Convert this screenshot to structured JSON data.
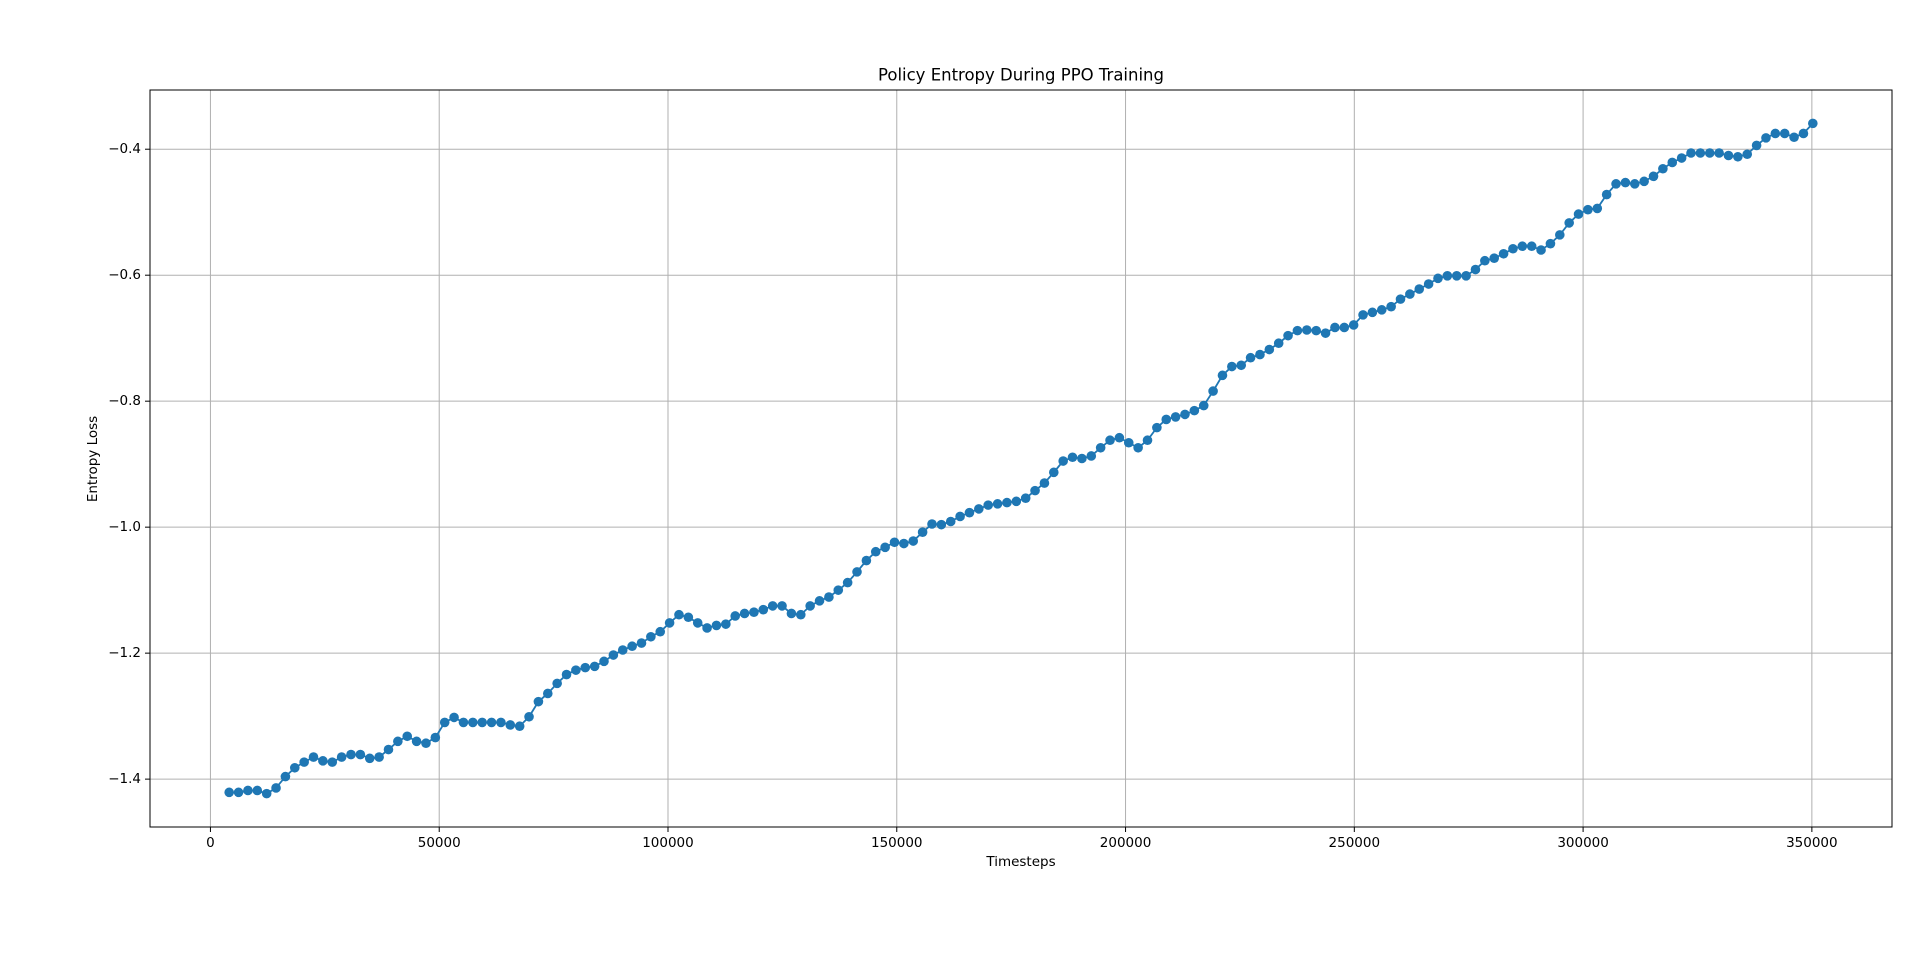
{
  "chart_data": {
    "type": "line",
    "title": "Policy Entropy During PPO Training",
    "xlabel": "Timesteps",
    "ylabel": "Entropy Loss",
    "x": [
      4096,
      6144,
      8192,
      10240,
      12288,
      14336,
      16384,
      18432,
      20480,
      22528,
      24576,
      26624,
      28672,
      30720,
      32768,
      34816,
      36864,
      38912,
      40960,
      43008,
      45056,
      47104,
      49152,
      51200,
      53248,
      55296,
      57344,
      59392,
      61440,
      63488,
      65536,
      67584,
      69632,
      71680,
      73728,
      75776,
      77824,
      79872,
      81920,
      83968,
      86016,
      88064,
      90112,
      92160,
      94208,
      96256,
      98304,
      100352,
      102400,
      104448,
      106496,
      108544,
      110592,
      112640,
      114688,
      116736,
      118784,
      120832,
      122880,
      124928,
      126976,
      129024,
      131072,
      133120,
      135168,
      137216,
      139264,
      141312,
      143360,
      145408,
      147456,
      149504,
      151552,
      153600,
      155648,
      157696,
      159744,
      161792,
      163840,
      165888,
      167936,
      169984,
      172032,
      174080,
      176128,
      178176,
      180224,
      182272,
      184320,
      186368,
      188416,
      190464,
      192512,
      194560,
      196608,
      198656,
      200704,
      202752,
      204800,
      206848,
      208896,
      210944,
      212992,
      215040,
      217088,
      219136,
      221184,
      223232,
      225280,
      227328,
      229376,
      231424,
      233472,
      235520,
      237568,
      239616,
      241664,
      243712,
      245760,
      247808,
      249856,
      251904,
      253952,
      256000,
      258048,
      260096,
      262144,
      264192,
      266240,
      268288,
      270336,
      272384,
      274432,
      276480,
      278528,
      280576,
      282624,
      284672,
      286720,
      288768,
      290816,
      292864,
      294912,
      296960,
      299008,
      301056,
      303104,
      305152,
      307200,
      309248,
      311296,
      313344,
      315392,
      317440,
      319488,
      321536,
      323584,
      325632,
      327680,
      329728,
      331776,
      333824,
      335872,
      337920,
      339968,
      342016,
      344064,
      346112,
      348160,
      350208
    ],
    "series": [
      {
        "color": "#1f77b4",
        "values": [
          -1.421,
          -1.421,
          -1.418,
          -1.418,
          -1.423,
          -1.414,
          -1.396,
          -1.382,
          -1.373,
          -1.365,
          -1.371,
          -1.373,
          -1.365,
          -1.361,
          -1.361,
          -1.367,
          -1.365,
          -1.353,
          -1.34,
          -1.332,
          -1.34,
          -1.343,
          -1.334,
          -1.31,
          -1.302,
          -1.31,
          -1.31,
          -1.31,
          -1.31,
          -1.31,
          -1.314,
          -1.316,
          -1.301,
          -1.277,
          -1.264,
          -1.248,
          -1.234,
          -1.227,
          -1.223,
          -1.221,
          -1.213,
          -1.203,
          -1.195,
          -1.189,
          -1.184,
          -1.174,
          -1.166,
          -1.152,
          -1.139,
          -1.143,
          -1.152,
          -1.16,
          -1.156,
          -1.154,
          -1.141,
          -1.137,
          -1.135,
          -1.131,
          -1.125,
          -1.125,
          -1.137,
          -1.139,
          -1.125,
          -1.117,
          -1.111,
          -1.1,
          -1.088,
          -1.071,
          -1.053,
          -1.039,
          -1.032,
          -1.024,
          -1.026,
          -1.022,
          -1.008,
          -0.995,
          -0.996,
          -0.991,
          -0.983,
          -0.977,
          -0.971,
          -0.965,
          -0.963,
          -0.961,
          -0.959,
          -0.954,
          -0.942,
          -0.93,
          -0.913,
          -0.895,
          -0.889,
          -0.891,
          -0.887,
          -0.874,
          -0.862,
          -0.858,
          -0.866,
          -0.874,
          -0.862,
          -0.842,
          -0.829,
          -0.825,
          -0.821,
          -0.815,
          -0.807,
          -0.784,
          -0.759,
          -0.745,
          -0.743,
          -0.731,
          -0.726,
          -0.718,
          -0.708,
          -0.696,
          -0.688,
          -0.687,
          -0.688,
          -0.692,
          -0.683,
          -0.683,
          -0.679,
          -0.663,
          -0.659,
          -0.655,
          -0.65,
          -0.638,
          -0.63,
          -0.622,
          -0.614,
          -0.605,
          -0.601,
          -0.601,
          -0.601,
          -0.591,
          -0.577,
          -0.573,
          -0.566,
          -0.558,
          -0.554,
          -0.554,
          -0.56,
          -0.55,
          -0.536,
          -0.517,
          -0.503,
          -0.496,
          -0.494,
          -0.472,
          -0.455,
          -0.453,
          -0.455,
          -0.451,
          -0.443,
          -0.431,
          -0.421,
          -0.414,
          -0.406,
          -0.406,
          -0.406,
          -0.406,
          -0.41,
          -0.412,
          -0.408,
          -0.394,
          -0.382,
          -0.375,
          -0.375,
          -0.381,
          -0.375,
          -0.359
        ]
      }
    ],
    "xlim": [
      -13210,
      367514
    ],
    "xticks": [
      0,
      50000,
      100000,
      150000,
      200000,
      250000,
      300000,
      350000
    ],
    "ylim": [
      -1.476,
      -0.306
    ],
    "yticks": [
      {
        "value": -1.4,
        "label": "−1.4"
      },
      {
        "value": -1.2,
        "label": "−1.2"
      },
      {
        "value": -1.0,
        "label": "−1.0"
      },
      {
        "value": -0.8,
        "label": "−0.8"
      },
      {
        "value": -0.6,
        "label": "−0.6"
      },
      {
        "value": -0.4,
        "label": "−0.4"
      }
    ],
    "grid": true,
    "markers": true
  }
}
